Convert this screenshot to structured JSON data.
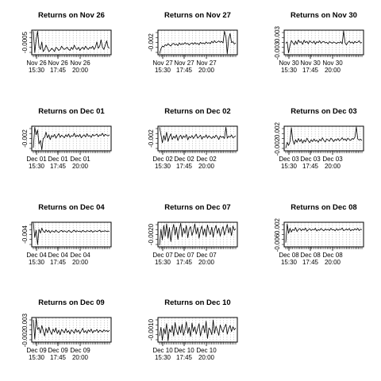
{
  "chart_data": [
    {
      "type": "line",
      "title": "Returns on Nov 26",
      "yticks": [
        "-0.0005"
      ],
      "ylim": [
        -0.0011,
        0.0012
      ],
      "xticks": [
        {
          "date": "Nov 26",
          "time": "15:30"
        },
        {
          "date": "Nov 26",
          "time": "17:45"
        },
        {
          "date": "Nov 26",
          "time": "20:00"
        }
      ],
      "values": [
        0.0011,
        -0.0009,
        0.0003,
        0.0011,
        -0.0003,
        -0.0006,
        0.0001,
        -0.0008,
        -0.0006,
        -0.0002,
        -0.0005,
        -0.0008,
        -0.0007,
        -0.0005,
        -0.0006,
        -0.0008,
        -0.0004,
        -0.0005,
        -0.0007,
        -0.0006,
        -0.0003,
        -0.0005,
        -0.0006,
        -0.0005,
        -0.0004,
        -0.0006,
        -0.0007,
        -0.0004,
        -0.0006,
        -0.0002,
        -0.0005,
        -0.0006,
        -0.0004,
        -0.0007,
        -0.0005,
        -0.0004,
        -0.0006,
        -0.0003,
        -0.0005,
        -0.0006,
        -0.0004,
        -0.0005,
        -0.0003,
        -0.0006,
        -0.0004,
        0.0001,
        -0.0005,
        -0.0003,
        0.0003,
        -0.0004,
        -0.0006,
        -0.0002,
        0.0002,
        -0.0004,
        -0.0005
      ]
    },
    {
      "type": "line",
      "title": "Returns on Nov 27",
      "yticks": [
        "-0.002"
      ],
      "ylim": [
        -0.0038,
        0.0035
      ],
      "xticks": [
        {
          "date": "Nov 27",
          "time": "15:30"
        },
        {
          "date": "Nov 27",
          "time": "17:45"
        },
        {
          "date": "Nov 27",
          "time": "20:00"
        }
      ],
      "values": [
        -0.0035,
        -0.002,
        -0.0012,
        -0.0015,
        -0.0008,
        -0.0011,
        -0.0005,
        -0.0009,
        -0.0012,
        -0.0006,
        -0.0004,
        -0.0009,
        -0.0006,
        -0.0011,
        -0.0003,
        -0.0008,
        -0.0005,
        -0.0007,
        -0.0002,
        -0.0006,
        -0.0004,
        -0.0009,
        -0.0005,
        -0.0003,
        -0.0007,
        -0.0002,
        -0.0006,
        -0.0004,
        -0.0008,
        -0.0001,
        -0.0005,
        -0.0003,
        -0.0006,
        0.0,
        -0.0004,
        -0.0002,
        -0.0005,
        0.0002,
        -0.0003,
        0.0004,
        -0.0002,
        0.0,
        0.0003,
        -0.0001,
        0.0002,
        -0.0003,
        0.0032,
        0.0015,
        -0.0035,
        0.001,
        0.0025,
        -0.0002,
        0.0001,
        -0.0006,
        -0.0003
      ]
    },
    {
      "type": "line",
      "title": "Returns on Nov 30",
      "yticks": [
        "-0.003",
        "0.003"
      ],
      "ylim": [
        -0.0042,
        0.0048
      ],
      "xticks": [
        {
          "date": "Nov 30",
          "time": "15:30"
        },
        {
          "date": "Nov 30",
          "time": "17:45"
        },
        {
          "date": "Nov 30",
          "time": "20:00"
        }
      ],
      "values": [
        0.0,
        0.0005,
        -0.0035,
        -0.0008,
        0.001,
        0.0002,
        -0.0005,
        0.0008,
        -0.0003,
        0.0012,
        0.0003,
        0.0006,
        -0.0004,
        0.0011,
        0.0002,
        0.0007,
        -0.0002,
        0.0009,
        0.0004,
        0.0001,
        0.0008,
        -0.0003,
        0.0006,
        0.0002,
        0.0009,
        0.0,
        0.0005,
        0.0007,
        0.0001,
        0.0004,
        -0.0002,
        0.0006,
        0.0003,
        0.0,
        0.0005,
        0.0002,
        -0.0001,
        0.0004,
        0.0001,
        0.0006,
        -0.0002,
        0.0045,
        0.0002,
        -0.0006,
        0.0003,
        0.0008,
        0.0001,
        0.0005,
        -0.0001,
        0.0007,
        0.0002,
        0.0004,
        0.0009,
        0.0001,
        0.0003
      ]
    },
    {
      "type": "line",
      "title": "Returns on Dec 01",
      "yticks": [
        "-0.002"
      ],
      "ylim": [
        -0.0038,
        0.0028
      ],
      "xticks": [
        {
          "date": "Dec 01",
          "time": "15:30"
        },
        {
          "date": "Dec 01",
          "time": "17:45"
        },
        {
          "date": "Dec 01",
          "time": "20:00"
        }
      ],
      "values": [
        -0.003,
        0.0025,
        0.0005,
        0.0018,
        -0.002,
        -0.001,
        -0.0035,
        -0.0005,
        -0.0002,
        0.0012,
        -0.0003,
        0.0005,
        -0.0008,
        0.0003,
        -0.0001,
        0.0006,
        -0.0004,
        0.0002,
        0.0008,
        -0.0002,
        0.0004,
        0.0001,
        -0.0003,
        0.0005,
        0.0,
        0.0007,
        -0.0002,
        0.0003,
        0.0001,
        0.0009,
        -0.0001,
        0.0004,
        0.0,
        0.0006,
        -0.0003,
        0.0002,
        0.0005,
        -0.0001,
        0.0008,
        0.0001,
        0.0003,
        -0.0002,
        0.0006,
        0.0002,
        0.0004,
        0.0007,
        0.0,
        0.0005,
        0.0003,
        0.0009,
        0.0001,
        0.0006,
        0.0004,
        0.0002,
        0.0005
      ]
    },
    {
      "type": "line",
      "title": "Returns on Dec 02",
      "yticks": [
        "-0.002"
      ],
      "ylim": [
        -0.0036,
        0.0038
      ],
      "xticks": [
        {
          "date": "Dec 02",
          "time": "15:30"
        },
        {
          "date": "Dec 02",
          "time": "17:45"
        },
        {
          "date": "Dec 02",
          "time": "20:00"
        }
      ],
      "values": [
        0.0035,
        0.0012,
        -0.0012,
        0.001,
        -0.0004,
        0.002,
        -0.0008,
        0.0005,
        0.0015,
        -0.0002,
        0.0008,
        0.0002,
        0.0012,
        -0.0005,
        0.0006,
        0.0011,
        0.0,
        0.0009,
        0.0004,
        0.0013,
        -0.0003,
        0.0007,
        0.0003,
        0.001,
        0.0001,
        0.0008,
        0.0014,
        0.0002,
        0.0006,
        0.0011,
        -0.0001,
        0.0007,
        0.0004,
        0.0012,
        0.0002,
        0.0009,
        0.0005,
        0.0001,
        0.0008,
        0.0003,
        0.0011,
        0.0006,
        -0.0002,
        0.0009,
        0.0004,
        0.0007,
        0.0001,
        0.0035,
        0.0002,
        0.0008,
        0.0005,
        0.0012,
        0.0003,
        0.0006,
        0.0009
      ]
    },
    {
      "type": "line",
      "title": "Returns on Dec 03",
      "yticks": [
        "-0.002",
        "0.002"
      ],
      "ylim": [
        -0.0032,
        0.0032
      ],
      "xticks": [
        {
          "date": "Dec 03",
          "time": "15:30"
        },
        {
          "date": "Dec 03",
          "time": "17:45"
        },
        {
          "date": "Dec 03",
          "time": "20:00"
        }
      ],
      "values": [
        -0.0025,
        -0.001,
        -0.0018,
        -0.0008,
        0.0028,
        -0.0005,
        -0.0015,
        -0.0003,
        -0.001,
        0.0,
        -0.0008,
        -0.0002,
        -0.0012,
        -0.0004,
        -0.0009,
        0.0001,
        -0.0006,
        -0.0011,
        -0.0003,
        -0.0008,
        -0.0001,
        -0.0007,
        -0.0004,
        -0.001,
        -0.0002,
        -0.0006,
        0.0002,
        -0.0005,
        -0.0009,
        -0.0001,
        -0.0004,
        -0.0007,
        0.0001,
        -0.0003,
        -0.0008,
        -0.0002,
        -0.0005,
        0.0,
        -0.0006,
        -0.0003,
        0.0002,
        -0.0004,
        -0.0001,
        -0.0006,
        0.0001,
        -0.0003,
        -0.0005,
        0.0,
        -0.0002,
        0.0003,
        0.003,
        -0.0001,
        -0.0004,
        -0.0002,
        -0.0005
      ]
    },
    {
      "type": "line",
      "title": "Returns on Dec 04",
      "yticks": [
        "-0.004"
      ],
      "ylim": [
        -0.0052,
        0.0032
      ],
      "xticks": [
        {
          "date": "Dec 04",
          "time": "15:30"
        },
        {
          "date": "Dec 04",
          "time": "17:45"
        },
        {
          "date": "Dec 04",
          "time": "20:00"
        }
      ],
      "values": [
        0.003,
        -0.002,
        0.0005,
        -0.0045,
        0.0008,
        -0.0005,
        0.0012,
        0.0002,
        -0.0003,
        0.0006,
        -0.0001,
        0.0004,
        -0.0004,
        0.0003,
        0.0001,
        -0.0002,
        0.0005,
        0.0,
        -0.0003,
        0.0002,
        0.0004,
        -0.0001,
        0.0003,
        0.0,
        -0.0002,
        0.0004,
        0.0001,
        -0.0003,
        0.0002,
        0.0005,
        -0.0001,
        0.0003,
        0.0,
        0.0002,
        -0.0002,
        0.0004,
        0.0001,
        -0.0001,
        0.0003,
        0.0002,
        0.0,
        0.0004,
        -0.0002,
        0.0001,
        0.0003,
        0.0,
        0.0002,
        0.0005,
        -0.0001,
        0.0002,
        0.0001,
        0.0003,
        0.0,
        0.0002,
        0.0001
      ]
    },
    {
      "type": "line",
      "title": "Returns on Dec 07",
      "yticks": [
        "-0.0020"
      ],
      "ylim": [
        -0.0028,
        0.0018
      ],
      "xticks": [
        {
          "date": "Dec 07",
          "time": "15:30"
        },
        {
          "date": "Dec 07",
          "time": "17:45"
        },
        {
          "date": "Dec 07",
          "time": "20:00"
        }
      ],
      "values": [
        -0.0025,
        0.0005,
        -0.0015,
        0.0012,
        -0.0008,
        0.0015,
        -0.0012,
        0.0008,
        -0.0018,
        0.0002,
        0.0014,
        -0.0006,
        0.0009,
        -0.0014,
        0.0004,
        0.0016,
        -0.0009,
        0.0007,
        -0.0003,
        0.0012,
        -0.0011,
        0.0005,
        0.001,
        -0.0007,
        0.0002,
        0.0015,
        -0.0004,
        0.0008,
        -0.0012,
        0.0003,
        0.0011,
        -0.0006,
        0.0006,
        -0.0009,
        0.0013,
        0.0001,
        -0.0005,
        0.0009,
        -0.001,
        0.0004,
        0.0012,
        -0.0003,
        0.0007,
        -0.0008,
        0.0002,
        0.001,
        -0.0006,
        0.0005,
        0.0014,
        -0.0002,
        0.0008,
        -0.0007,
        0.0011,
        0.0003,
        0.0006
      ]
    },
    {
      "type": "line",
      "title": "Returns on Dec 08",
      "yticks": [
        "-0.006",
        "0.002"
      ],
      "ylim": [
        -0.0068,
        0.0038
      ],
      "xticks": [
        {
          "date": "Dec 08",
          "time": "15:30"
        },
        {
          "date": "Dec 08",
          "time": "17:45"
        },
        {
          "date": "Dec 08",
          "time": "20:00"
        }
      ],
      "values": [
        -0.005,
        0.003,
        -0.001,
        0.0012,
        -0.0004,
        0.0008,
        0.0002,
        0.0015,
        -0.0002,
        0.0007,
        0.0011,
        0.0001,
        0.0009,
        0.0004,
        0.0013,
        -0.0001,
        0.0006,
        0.001,
        0.0002,
        0.0008,
        0.0005,
        0.0012,
        0.0,
        0.0007,
        0.0003,
        0.0011,
        0.0006,
        0.0001,
        0.0009,
        0.0004,
        0.0008,
        0.0002,
        0.0012,
        0.0005,
        0.0007,
        0.0001,
        0.001,
        0.0003,
        0.0008,
        0.0006,
        0.0013,
        0.0002,
        0.0005,
        0.0009,
        0.0004,
        0.0011,
        0.0001,
        0.0007,
        0.0003,
        0.001,
        0.0005,
        0.0012,
        0.0002,
        0.0008,
        0.0006
      ]
    },
    {
      "type": "line",
      "title": "Returns on Dec 09",
      "yticks": [
        "-0.002",
        "0.003"
      ],
      "ylim": [
        -0.0028,
        0.0036
      ],
      "xticks": [
        {
          "date": "Dec 09",
          "time": "15:30"
        },
        {
          "date": "Dec 09",
          "time": "17:45"
        },
        {
          "date": "Dec 09",
          "time": "20:00"
        }
      ],
      "values": [
        0.003,
        -0.002,
        0.0034,
        0.0005,
        0.001,
        -0.0005,
        0.0015,
        0.0003,
        -0.0012,
        0.0008,
        -0.0004,
        0.0011,
        0.0,
        -0.0008,
        0.0006,
        -0.0002,
        0.0009,
        -0.0006,
        0.0003,
        -0.0009,
        0.0005,
        0.0001,
        -0.0004,
        0.0007,
        -0.0003,
        0.0002,
        -0.0007,
        0.0004,
        0.0,
        -0.0005,
        0.0006,
        -0.0002,
        0.0003,
        -0.0006,
        0.0001,
        0.0008,
        -0.0003,
        0.0002,
        -0.0005,
        0.0004,
        -0.0001,
        0.0006,
        -0.0004,
        0.0002,
        0.0,
        0.0005,
        -0.0003,
        0.0003,
        0.0001,
        -0.0002,
        0.0004,
        0.0,
        0.0002,
        -0.0001,
        0.0003
      ]
    },
    {
      "type": "line",
      "title": "Returns on Dec 10",
      "yticks": [
        "-0.0010"
      ],
      "ylim": [
        -0.0018,
        0.0022
      ],
      "xticks": [
        {
          "date": "Dec 10",
          "time": "15:30"
        },
        {
          "date": "Dec 10",
          "time": "17:45"
        },
        {
          "date": "Dec 10",
          "time": "20:00"
        }
      ],
      "values": [
        -0.0008,
        0.0006,
        -0.0015,
        0.0004,
        -0.0005,
        0.0012,
        -0.0016,
        0.0003,
        -0.0002,
        0.0009,
        -0.0008,
        0.0014,
        0.0001,
        -0.0006,
        0.0008,
        -0.0003,
        0.0011,
        -0.0007,
        0.0002,
        0.0015,
        -0.0004,
        0.0006,
        -0.0009,
        0.0013,
        -0.0001,
        0.0007,
        -0.0005,
        0.0004,
        0.0012,
        -0.0008,
        0.0003,
        0.0009,
        -0.0003,
        0.0016,
        -0.0012,
        0.0005,
        0.0002,
        -0.0006,
        0.0018,
        -0.0004,
        0.0008,
        0.0001,
        -0.0007,
        0.001,
        0.0003,
        -0.0002,
        0.0006,
        0.0011,
        -0.0005,
        0.0004,
        0.0009,
        -0.0001,
        0.0007,
        0.0002,
        0.0005
      ]
    }
  ]
}
